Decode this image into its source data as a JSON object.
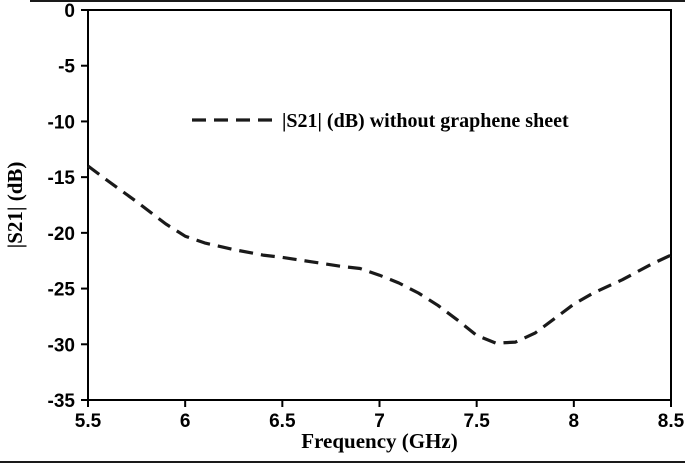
{
  "chart_data": {
    "type": "line",
    "title": "",
    "xlabel": "Frequency (GHz)",
    "ylabel": "|S21| (dB)",
    "xlim": [
      5.5,
      8.5
    ],
    "ylim": [
      -35,
      0
    ],
    "xticks": [
      5.5,
      6,
      6.5,
      7,
      7.5,
      8,
      8.5
    ],
    "xtick_labels": [
      "5.5",
      "6",
      "6.5",
      "7",
      "7.5",
      "8",
      "8.5"
    ],
    "yticks": [
      0,
      -5,
      -10,
      -15,
      -20,
      -25,
      -30,
      -35
    ],
    "ytick_labels": [
      "0",
      "-5",
      "-10",
      "-15",
      "-20",
      "-25",
      "-30",
      "-35"
    ],
    "grid": false,
    "legend_position": "inside-top",
    "series": [
      {
        "name": "|S21| (dB) without graphene sheet",
        "color": "#1a1a1a",
        "line_style": "dashed",
        "x": [
          5.5,
          5.6,
          5.75,
          5.9,
          6.0,
          6.1,
          6.25,
          6.4,
          6.5,
          6.65,
          6.8,
          6.9,
          7.0,
          7.1,
          7.2,
          7.3,
          7.4,
          7.5,
          7.6,
          7.7,
          7.8,
          7.9,
          8.0,
          8.1,
          8.25,
          8.4,
          8.5
        ],
        "y": [
          -14.0,
          -15.3,
          -17.2,
          -19.2,
          -20.3,
          -20.9,
          -21.5,
          -22.0,
          -22.2,
          -22.6,
          -23.0,
          -23.2,
          -23.8,
          -24.5,
          -25.4,
          -26.5,
          -27.8,
          -29.2,
          -29.9,
          -29.8,
          -29.0,
          -27.7,
          -26.4,
          -25.4,
          -24.2,
          -22.8,
          -22.0
        ]
      }
    ]
  },
  "colors": {
    "line": "#1a1a1a",
    "axis": "#000000",
    "background": "#ffffff"
  }
}
